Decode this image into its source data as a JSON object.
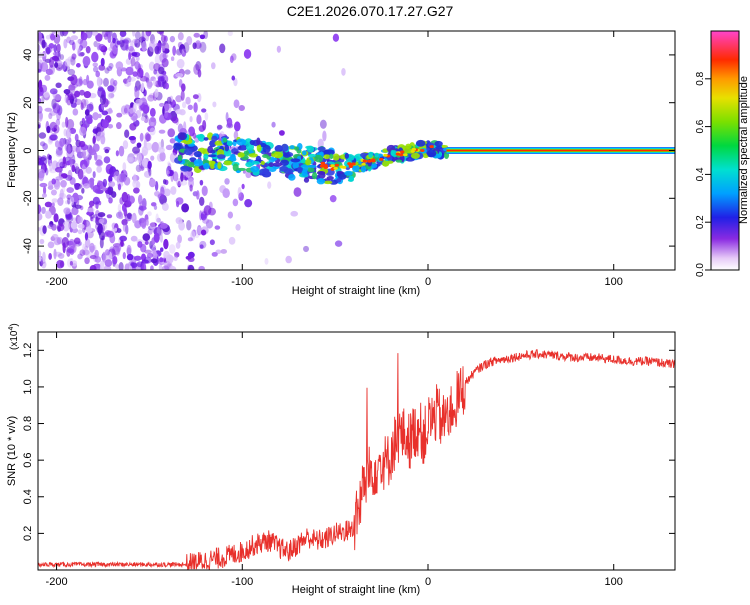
{
  "title": "C2E1.2026.070.17.27.G27",
  "colors": {
    "line": "#e8302b",
    "axis": "#000000",
    "ridge": "#e8302b"
  },
  "chart_data": [
    {
      "type": "heatmap",
      "title": "C2E1.2026.070.17.27.G27",
      "xlabel": "Height of straight line (km)",
      "ylabel": "Frequency (Hz)",
      "xlim": [
        -210,
        133
      ],
      "ylim": [
        -50,
        50
      ],
      "xticks": [
        {
          "value": -200,
          "label": "-200"
        },
        {
          "value": -100,
          "label": "-100"
        },
        {
          "value": 0,
          "label": "0"
        },
        {
          "value": 100,
          "label": "100"
        }
      ],
      "yticks": [
        {
          "value": 40,
          "label": "40"
        },
        {
          "value": 20,
          "label": "20"
        },
        {
          "value": 0,
          "label": "0"
        },
        {
          "value": -20,
          "label": "-20"
        },
        {
          "value": -40,
          "label": "-40"
        }
      ],
      "ridge": {
        "x": [
          -132,
          -120,
          -110,
          -100,
          -90,
          -80,
          -70,
          -60,
          -50,
          -40,
          -30,
          -20,
          -10,
          0,
          10,
          20,
          60,
          100,
          133
        ],
        "y": [
          -1,
          -1,
          -1,
          -2,
          -3,
          -4,
          -5,
          -6,
          -7,
          -6,
          -4,
          -2,
          -1,
          1,
          0,
          0,
          0,
          0,
          0
        ]
      },
      "colorbar": {
        "label": "Normalized spectral amplitude",
        "range": [
          0,
          1
        ],
        "ticks": [
          {
            "value": 0.0,
            "label": "0.0"
          },
          {
            "value": 0.2,
            "label": "0.2"
          },
          {
            "value": 0.4,
            "label": "0.4"
          },
          {
            "value": 0.6,
            "label": "0.6"
          },
          {
            "value": 0.8,
            "label": "0.8"
          }
        ]
      }
    },
    {
      "type": "line",
      "xlabel": "Height of straight line (km)",
      "ylabel": "SNR (10 * v/v)",
      "yscale_label": "(x10",
      "yscale_exp": "4",
      "xlim": [
        -210,
        133
      ],
      "ylim": [
        0,
        1.3
      ],
      "xticks": [
        {
          "value": -200,
          "label": "-200"
        },
        {
          "value": -100,
          "label": "-100"
        },
        {
          "value": 0,
          "label": "0"
        },
        {
          "value": 100,
          "label": "100"
        }
      ],
      "yticks": [
        {
          "value": 0.2,
          "label": "0.2"
        },
        {
          "value": 0.4,
          "label": "0.4"
        },
        {
          "value": 0.6,
          "label": "0.6"
        },
        {
          "value": 0.8,
          "label": "0.8"
        },
        {
          "value": 1.0,
          "label": "1.0"
        },
        {
          "value": 1.2,
          "label": "1.2"
        }
      ],
      "series": [
        {
          "name": "SNR",
          "x": [
            -210,
            -180,
            -150,
            -130,
            -120,
            -110,
            -100,
            -95,
            -90,
            -85,
            -80,
            -75,
            -70,
            -65,
            -60,
            -55,
            -50,
            -45,
            -40,
            -38,
            -35,
            -32,
            -30,
            -28,
            -25,
            -22,
            -20,
            -17,
            -15,
            -12,
            -10,
            -8,
            -5,
            -2,
            0,
            3,
            5,
            8,
            10,
            13,
            15,
            18,
            20,
            25,
            30,
            35,
            40,
            50,
            60,
            70,
            80,
            90,
            100,
            110,
            120,
            133
          ],
          "y": [
            0.03,
            0.03,
            0.03,
            0.03,
            0.05,
            0.07,
            0.1,
            0.13,
            0.15,
            0.16,
            0.12,
            0.1,
            0.14,
            0.18,
            0.16,
            0.17,
            0.2,
            0.21,
            0.23,
            0.3,
            0.45,
            0.52,
            0.55,
            0.56,
            0.6,
            0.58,
            0.64,
            0.72,
            0.74,
            0.73,
            0.7,
            0.75,
            0.78,
            0.72,
            0.8,
            0.83,
            0.86,
            0.8,
            0.85,
            0.88,
            0.92,
            0.97,
            1.02,
            1.08,
            1.12,
            1.14,
            1.15,
            1.17,
            1.18,
            1.17,
            1.16,
            1.16,
            1.15,
            1.14,
            1.14,
            1.12
          ]
        }
      ]
    }
  ]
}
